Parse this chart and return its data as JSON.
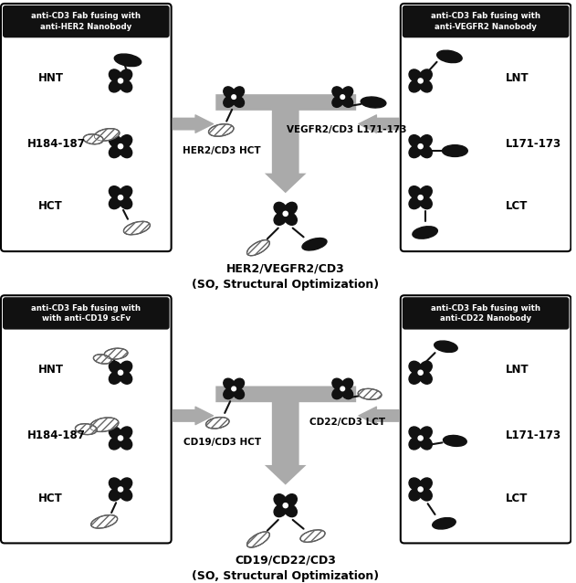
{
  "fig_width": 6.31,
  "fig_height": 6.38,
  "bg_color": "#ffffff",
  "arrow_color": "#aaaaaa",
  "dark_color": "#111111",
  "title1": "HER2/VEGFR2/CD3\n(SO, Structural Optimization)",
  "title2": "CD19/CD22/CD3\n(SO, Structural Optimization)",
  "box1_title": "anti-CD3 Fab fusing with\nanti-HER2 Nanobody",
  "box2_title": "anti-CD3 Fab fusing with\nanti-VEGFR2 Nanobody",
  "box3_title": "anti-CD3 Fab fusing with\nwith anti-CD19 scFv",
  "box4_title": "anti-CD3 Fab fusing with\nanti-CD22 Nanobody",
  "center_label_top_left": "HER2/CD3 HCT",
  "center_label_top_right": "VEGFR2/CD3 L171-173",
  "center_label_bot_left": "CD19/CD3 HCT",
  "center_label_bot_right": "CD22/CD3 LCT"
}
